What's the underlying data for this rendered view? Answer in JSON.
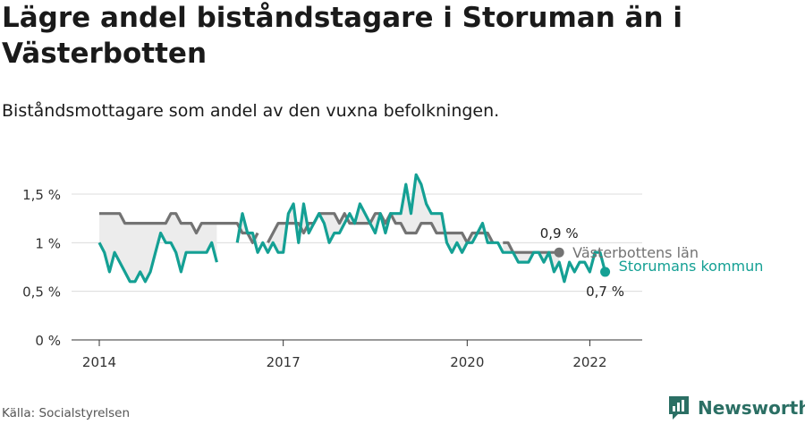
{
  "title": "Lägre andel biståndstagare i Storuman än i Västerbotten",
  "subtitle": "Biståndsmottagare som andel av den vuxna befolkningen.",
  "source": "Källa: Socialstyrelsen",
  "brand": {
    "name": "Newsworthy",
    "icon": "newsworthy-logo-icon",
    "color": "#2b6f64"
  },
  "chart_data": {
    "type": "line",
    "y_ticks": [
      "0 %",
      "0,5 %",
      "1 %",
      "1,5 %"
    ],
    "y_tick_values": [
      0,
      0.5,
      1,
      1.5
    ],
    "ylim": [
      0,
      1.5
    ],
    "x_ticks": [
      "2014",
      "2017",
      "2020",
      "2022"
    ],
    "x_tick_values": [
      "2014-01",
      "2017-01",
      "2020-01",
      "2022-01"
    ],
    "xlim": [
      "2014-01",
      "2022-06"
    ],
    "grid": true,
    "series": [
      {
        "name": "Västerbottens län",
        "color": "#737373",
        "end_label": "0,9 %",
        "values": [
          1.3,
          1.3,
          1.3,
          1.3,
          1.3,
          1.2,
          1.2,
          1.2,
          1.2,
          1.2,
          1.2,
          1.2,
          1.2,
          1.2,
          1.3,
          1.3,
          1.2,
          1.2,
          1.2,
          1.1,
          1.2,
          1.2,
          1.2,
          1.2,
          1.2,
          1.2,
          1.2,
          1.2,
          1.1,
          1.1,
          1.0,
          1.1,
          null,
          1.0,
          1.1,
          1.2,
          1.2,
          1.2,
          1.2,
          1.2,
          1.1,
          1.2,
          1.2,
          1.3,
          1.3,
          1.3,
          1.3,
          1.2,
          1.3,
          1.2,
          1.2,
          1.2,
          1.2,
          1.2,
          1.3,
          1.3,
          1.2,
          1.3,
          1.2,
          1.2,
          1.1,
          1.1,
          1.1,
          1.2,
          1.2,
          1.2,
          1.1,
          1.1,
          1.1,
          1.1,
          1.1,
          1.1,
          1.0,
          1.1,
          1.1,
          1.1,
          1.1,
          1.0,
          null,
          1.0,
          1.0,
          0.9,
          0.9,
          0.9,
          0.9,
          0.9,
          0.9,
          0.9,
          0.9,
          0.9,
          0.9
        ]
      },
      {
        "name": "Storumans kommun",
        "color": "#14a094",
        "end_label": "0,7 %",
        "values": [
          1.0,
          0.9,
          0.7,
          0.9,
          0.8,
          0.7,
          0.6,
          0.6,
          0.7,
          0.6,
          0.7,
          0.9,
          1.1,
          1.0,
          1.0,
          0.9,
          0.7,
          0.9,
          0.9,
          0.9,
          0.9,
          0.9,
          1.0,
          0.8,
          null,
          null,
          null,
          1.0,
          1.3,
          1.1,
          1.1,
          0.9,
          1.0,
          0.9,
          1.0,
          0.9,
          0.9,
          1.3,
          1.4,
          1.0,
          1.4,
          1.1,
          1.2,
          1.3,
          1.2,
          1.0,
          1.1,
          1.1,
          1.2,
          1.3,
          1.2,
          1.4,
          1.3,
          1.2,
          1.1,
          1.3,
          1.1,
          1.3,
          1.3,
          1.3,
          1.6,
          1.3,
          1.7,
          1.6,
          1.4,
          1.3,
          1.3,
          1.3,
          1.0,
          0.9,
          1.0,
          0.9,
          1.0,
          1.0,
          1.1,
          1.2,
          1.0,
          1.0,
          1.0,
          0.9,
          0.9,
          0.9,
          0.8,
          0.8,
          0.8,
          0.9,
          0.9,
          0.8,
          0.9,
          0.7,
          0.8,
          0.6,
          0.8,
          0.7,
          0.8,
          0.8,
          0.7,
          0.9,
          0.9,
          0.7
        ]
      }
    ]
  }
}
